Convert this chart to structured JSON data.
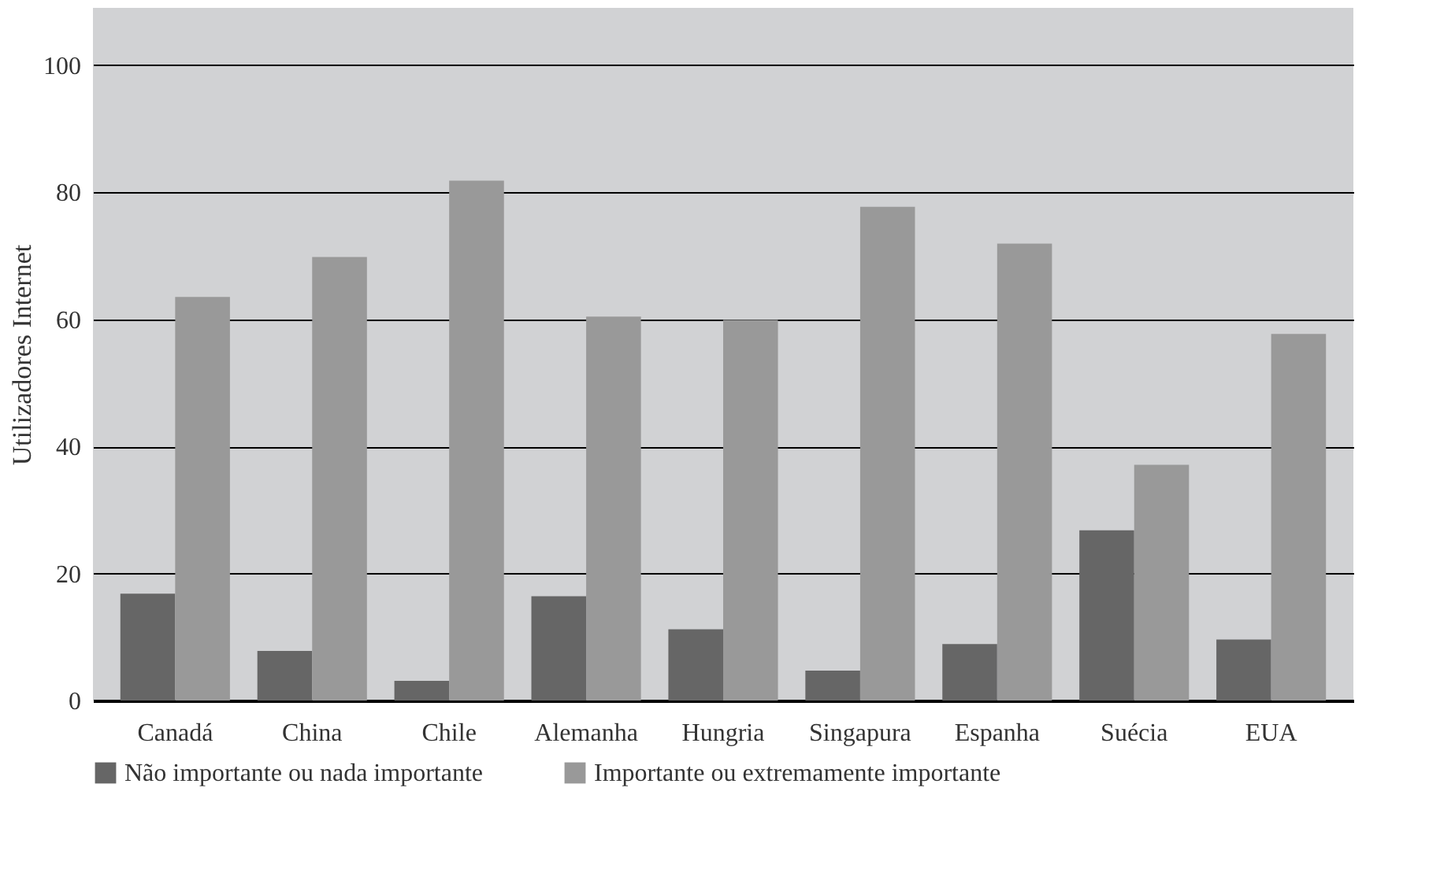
{
  "chart_data": {
    "type": "bar",
    "ylabel": "Utilizadores Internet",
    "categories": [
      "Canadá",
      "China",
      "Chile",
      "Alemanha",
      "Hungria",
      "Singapura",
      "Espanha",
      "Suécia",
      "EUA"
    ],
    "series": [
      {
        "name": "Não importante ou nada importante",
        "color": "#666666",
        "values": [
          16.8,
          7.8,
          3.1,
          16.4,
          11.2,
          4.7,
          8.9,
          26.8,
          9.6
        ]
      },
      {
        "name": "Importante ou extremamente importante",
        "color": "#999999",
        "values": [
          63.5,
          69.8,
          81.8,
          60.4,
          59.9,
          77.7,
          71.9,
          37.1,
          57.7
        ]
      }
    ],
    "ylim": [
      0,
      109
    ],
    "yticks": [
      0,
      20,
      40,
      60,
      80,
      100
    ],
    "grid": "y",
    "legend": "bottom left"
  }
}
